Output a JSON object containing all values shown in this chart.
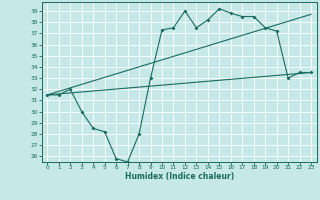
{
  "xlabel": "Humidex (Indice chaleur)",
  "xlim": [
    -0.5,
    23.5
  ],
  "ylim": [
    25.5,
    39.8
  ],
  "yticks": [
    26,
    27,
    28,
    29,
    30,
    31,
    32,
    33,
    34,
    35,
    36,
    37,
    38,
    39
  ],
  "xticks": [
    0,
    1,
    2,
    3,
    4,
    5,
    6,
    7,
    8,
    9,
    10,
    11,
    12,
    13,
    14,
    15,
    16,
    17,
    18,
    19,
    20,
    21,
    22,
    23
  ],
  "bg_color": "#c6e8e6",
  "line_color": "#1a6b60",
  "grid_color": "#ffffff",
  "line1_x": [
    0,
    1,
    2,
    3,
    4,
    5,
    6,
    7,
    8,
    9,
    10,
    11,
    12,
    13,
    14,
    15,
    16,
    17,
    18,
    19,
    20,
    21,
    22,
    23
  ],
  "line1_y": [
    31.5,
    31.5,
    32.0,
    30.0,
    28.5,
    28.2,
    25.8,
    25.5,
    28.0,
    33.0,
    37.3,
    37.5,
    39.0,
    37.5,
    38.2,
    39.2,
    38.8,
    38.5,
    38.5,
    37.5,
    37.2,
    33.0,
    33.5,
    33.5
  ],
  "line2_x": [
    0,
    23
  ],
  "line2_y": [
    31.5,
    33.5
  ],
  "line3_x": [
    0,
    23
  ],
  "line3_y": [
    31.5,
    38.7
  ]
}
